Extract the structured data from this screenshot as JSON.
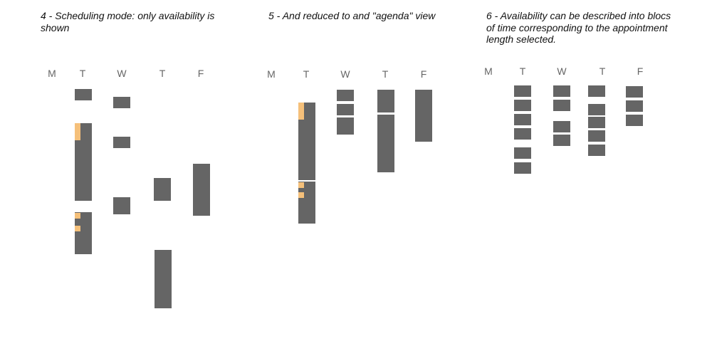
{
  "colors": {
    "availability": "#656565",
    "booked": "#f5c07a",
    "caption": "#111111",
    "day_label": "#666666"
  },
  "panels": [
    {
      "caption": "4 - Scheduling mode: only availability is shown",
      "days": [
        "M",
        "T",
        "W",
        "T",
        "F"
      ]
    },
    {
      "caption": "5 - And reduced to and \"agenda\" view",
      "days": [
        "M",
        "T",
        "W",
        "T",
        "F"
      ]
    },
    {
      "caption": "6 - Availability can be described into blocs of time corresponding to the appointment length selected.",
      "days": [
        "M",
        "T",
        "W",
        "T",
        "F"
      ]
    }
  ]
}
